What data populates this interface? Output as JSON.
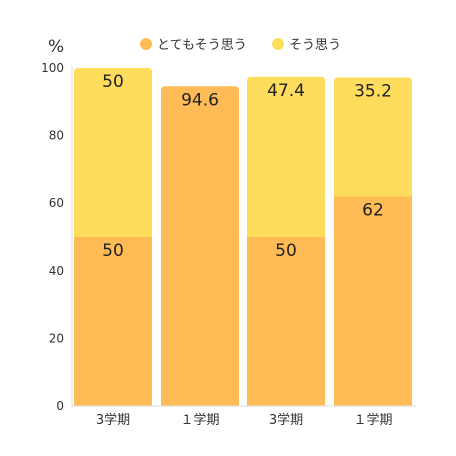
{
  "chart_data": {
    "type": "bar",
    "stacked": true,
    "unit": "%",
    "categories": [
      "3学期",
      "１学期",
      "3学期",
      "１学期"
    ],
    "series": [
      {
        "name": "とてもそう思う",
        "values": [
          50,
          94.6,
          50,
          62
        ],
        "labels": [
          "50",
          "94.6",
          "50",
          "62"
        ],
        "color": "#FFBB55"
      },
      {
        "name": "そう思う",
        "values": [
          50,
          null,
          47.4,
          35.2
        ],
        "labels": [
          "50",
          "",
          "47.4",
          "35.2"
        ],
        "color": "#FFDD5C"
      }
    ],
    "yticks": [
      0,
      20,
      40,
      60,
      80,
      100
    ],
    "ylim": [
      0,
      100
    ],
    "grid": false,
    "legend": "top-center"
  }
}
